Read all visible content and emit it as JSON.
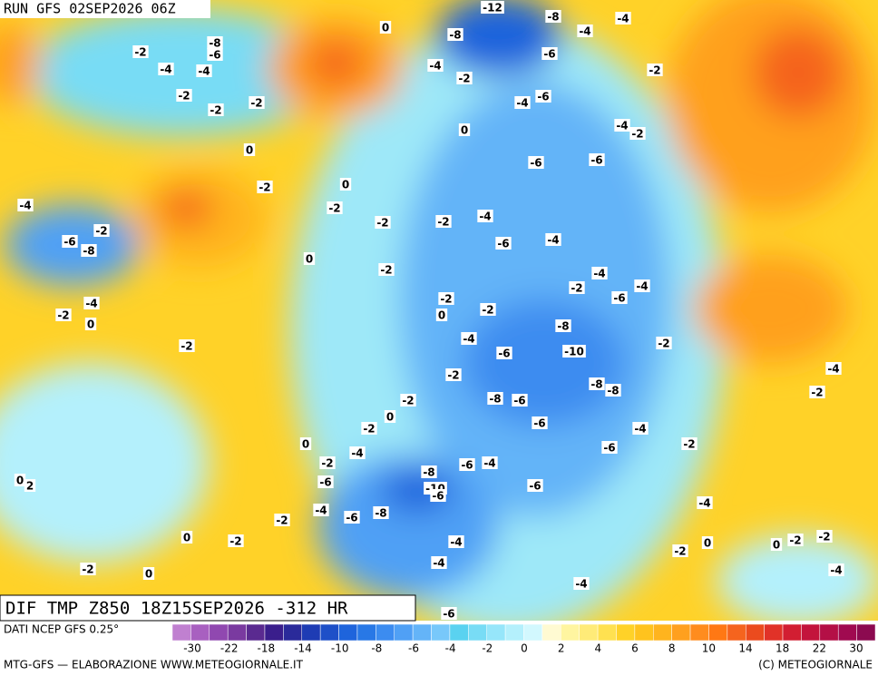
{
  "header": {
    "run": "RUN GFS 02SEP2026 06Z"
  },
  "map": {
    "caption": "DIF TMP Z850 18Z15SEP2026 -312 HR",
    "contour_labels": [
      -12,
      -8,
      -4,
      0,
      -2,
      -8,
      -6,
      -4,
      -4,
      -8,
      -4,
      -6,
      -4,
      -2,
      -2,
      -2,
      -2,
      -2,
      -4,
      -6,
      0,
      -4,
      -2,
      0,
      -6,
      -6,
      -2,
      0,
      -4,
      -2,
      -2,
      -2,
      -4,
      -6,
      -8,
      -2,
      -6,
      -4,
      0,
      -2,
      -4,
      -4,
      -2,
      -6,
      -2,
      -4,
      -2,
      0,
      -2,
      0,
      -8,
      -4,
      -10,
      -6,
      -2,
      -2,
      -2,
      -4,
      -8,
      -8,
      -2,
      -8,
      -6,
      -2,
      0,
      -6,
      -4,
      -2,
      0,
      -4,
      -2,
      -6,
      -2,
      -8,
      -6,
      -4,
      -6,
      -10,
      -6,
      -6,
      0,
      2,
      -4,
      -6,
      -8,
      -2,
      -4,
      0,
      -2,
      -4,
      0,
      -2,
      0,
      -2,
      -2,
      -2,
      0,
      -4,
      -4,
      -4,
      -6
    ]
  },
  "legend": {
    "source": "DATI NCEP GFS 0.25°",
    "colors": [
      "#c080d0",
      "#a860c0",
      "#9048b0",
      "#7a3aa0",
      "#5a2a90",
      "#3a1e8c",
      "#2a2a9a",
      "#1e3cb4",
      "#1e50c8",
      "#1e64dc",
      "#2878e6",
      "#3c8cf0",
      "#50a0f5",
      "#64b4f8",
      "#78c8fa",
      "#5ad2f0",
      "#78dcf5",
      "#96e6fa",
      "#b4f0fc",
      "#d2f8fe",
      "#fffad2",
      "#fff5a0",
      "#ffeb78",
      "#ffe150",
      "#ffd228",
      "#ffc31e",
      "#ffb41e",
      "#ffa01e",
      "#ff8c1e",
      "#ff7814",
      "#f5641e",
      "#eb4b1e",
      "#e13228",
      "#d21e32",
      "#c3143c",
      "#b40f46",
      "#a00a50",
      "#8c0a50"
    ],
    "ticks": [
      -30,
      -22,
      -18,
      -14,
      -10,
      -8,
      -6,
      -4,
      -2,
      0,
      2,
      4,
      6,
      8,
      10,
      14,
      18,
      22,
      30
    ]
  },
  "footer": {
    "left": "MTG-GFS — ELABORAZIONE WWW.METEOGIORNALE.IT",
    "right": "(C) METEOGIORNALE"
  }
}
